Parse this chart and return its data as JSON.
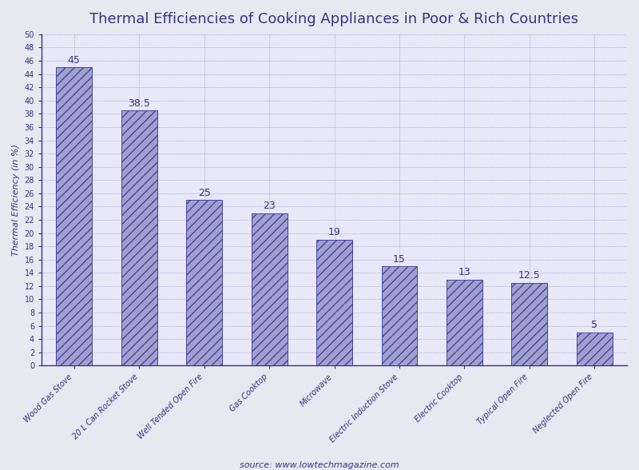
{
  "title": "Thermal Efficiencies of Cooking Appliances in Poor & Rich Countries",
  "categories": [
    "Wood Gas Stove",
    "20 L Can Rocket Stove",
    "Well Tended Open Fire",
    "Gas Cooktop",
    "Microwave",
    "Electric Induction Stove",
    "Electric Cooktop",
    "Typical Open Fire",
    "Neglected Open Fire"
  ],
  "values": [
    45,
    38.5,
    25,
    23,
    19,
    15,
    13,
    12.5,
    5
  ],
  "bar_color": "#a0a0cc",
  "bar_edge_color": "#4444aa",
  "bar_hatch": "///",
  "ylabel": "Thermal Efficiency (in %)",
  "ylim": [
    0,
    50
  ],
  "yticks": [
    0,
    2,
    4,
    6,
    8,
    10,
    12,
    14,
    16,
    18,
    20,
    22,
    24,
    26,
    28,
    30,
    32,
    34,
    36,
    38,
    40,
    42,
    44,
    46,
    48,
    50
  ],
  "source_text": "source: www.lowtechmagazine.com",
  "title_fontsize": 13,
  "tick_fontsize": 7,
  "xtick_fontsize": 7,
  "axis_label_fontsize": 8,
  "plot_bg_color": "#e8e8f8",
  "figure_bg_color": "#e8e8f0",
  "grid_color": "#8888bb",
  "title_color": "#333388",
  "text_color": "#333388",
  "bar_label_fontsize": 9,
  "bar_width": 0.55
}
